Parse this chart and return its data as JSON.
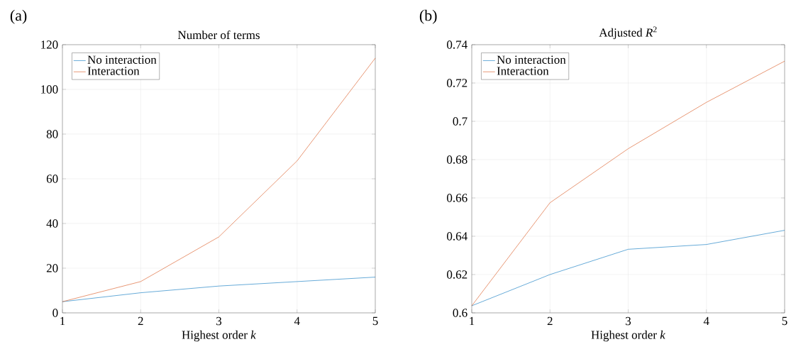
{
  "chart_data": [
    {
      "type": "line",
      "title": "Number of terms",
      "xlabel": "Highest order *k*",
      "x": [
        1,
        2,
        3,
        4,
        5
      ],
      "xlim": [
        1,
        5
      ],
      "xticks": [
        1,
        2,
        3,
        4,
        5
      ],
      "ylim": [
        0,
        120
      ],
      "yticks": [
        0,
        20,
        40,
        60,
        80,
        100,
        120
      ],
      "grid": true,
      "legend": "top left",
      "marker": "none",
      "line_style": "solid",
      "annotations": [
        "(a)"
      ],
      "series": [
        {
          "name": "No interaction",
          "color": "#0072bd",
          "values": [
            5,
            9,
            12,
            14,
            16
          ]
        },
        {
          "name": "Interaction",
          "color": "#d95319",
          "values": [
            5,
            14,
            34,
            68,
            114
          ]
        }
      ]
    },
    {
      "type": "line",
      "title": "Adjusted *R*$^{2}$",
      "xlabel": "Highest order *k*",
      "x": [
        1,
        2,
        3,
        4,
        5
      ],
      "xlim": [
        1,
        5
      ],
      "xticks": [
        1,
        2,
        3,
        4,
        5
      ],
      "ylim": [
        0.6,
        0.74
      ],
      "yticks": [
        0.6,
        0.62,
        0.64,
        0.66,
        0.68,
        0.7,
        0.72,
        0.74
      ],
      "grid": true,
      "legend": "top left",
      "marker": "none",
      "line_style": "solid",
      "annotations": [
        "(b)"
      ],
      "series": [
        {
          "name": "No interaction",
          "color": "#0072bd",
          "values": [
            0.6037,
            0.62,
            0.6332,
            0.6357,
            0.6431
          ]
        },
        {
          "name": "Interaction",
          "color": "#d95319",
          "values": [
            0.6037,
            0.6575,
            0.6857,
            0.7099,
            0.7314
          ]
        }
      ]
    }
  ]
}
